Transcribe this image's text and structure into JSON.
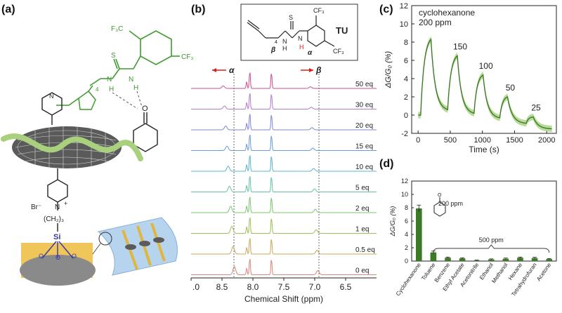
{
  "panels": {
    "a": {
      "label": "(a)"
    },
    "b": {
      "label": "(b)"
    },
    "c": {
      "label": "(c)"
    },
    "d": {
      "label": "(d)"
    }
  },
  "molecule_a": {
    "cf3_top": "F₃C",
    "cf3_right": "CF₃",
    "s": "S",
    "n_left": "N",
    "n_right": "N",
    "h_left": "H",
    "h_right": "H",
    "n4": "4",
    "o": "O",
    "br": "Br⁻",
    "n_plus": "N",
    "plus": "+",
    "chain": "(CH₂)₃",
    "si": "Si",
    "o_left": "O",
    "o_mid": "O",
    "o_right": "O",
    "pyridine_n_top": "N"
  },
  "nmr": {
    "tu_label": "TU",
    "tu_cf3_top": "CF₃",
    "tu_cf3_bot": "CF₃",
    "tu_s": "S",
    "tu_n1": "N",
    "tu_n2": "N",
    "tu_h1": "H",
    "tu_h2": "H",
    "tu_beta": "β",
    "tu_alpha": "α",
    "tu_n_sub": "4",
    "alpha_label": "α",
    "beta_label": "β",
    "xlabel": "Chemical Shift (ppm)",
    "xticks": [
      ".0",
      "8.5",
      "8.0",
      "7.5",
      "7.0",
      "6.5"
    ],
    "traces": [
      {
        "label": "50 eq",
        "color": "#c94f8e"
      },
      {
        "label": "30 eq",
        "color": "#b07ad0"
      },
      {
        "label": "20 eq",
        "color": "#7d86d6"
      },
      {
        "label": "15 eq",
        "color": "#6a9ad9"
      },
      {
        "label": "10 eq",
        "color": "#5ab4cf"
      },
      {
        "label": "5 eq",
        "color": "#63c2a4"
      },
      {
        "label": "2 eq",
        "color": "#7cc56d"
      },
      {
        "label": "1 eq",
        "color": "#9cbf55"
      },
      {
        "label": "0.5 eq",
        "color": "#c7a85a"
      },
      {
        "label": "0 eq",
        "color": "#d98579"
      }
    ]
  },
  "chart_data": [
    {
      "type": "line",
      "annotation_title": "cyclohexanone",
      "xlabel": "Time (s)",
      "ylabel": "ΔG/G₀ (%)",
      "xlim": [
        -100,
        2150
      ],
      "ylim": [
        -2,
        12
      ],
      "xticks": [
        0,
        500,
        1000,
        1500,
        2000
      ],
      "yticks": [
        -2,
        0,
        2,
        4,
        6,
        8,
        10,
        12
      ],
      "line_color": "#3d7a28",
      "band_color": "#a7d17e",
      "pulses": [
        {
          "start": 40,
          "peak_t": 200,
          "peak": 8.3,
          "end": 460,
          "end_val": 0.6,
          "label": "200 ppm"
        },
        {
          "start": 460,
          "peak_t": 610,
          "peak": 6.5,
          "end": 870,
          "end_val": 0.2,
          "label": "150"
        },
        {
          "start": 870,
          "peak_t": 1010,
          "peak": 4.4,
          "end": 1270,
          "end_val": -0.3,
          "label": "100"
        },
        {
          "start": 1270,
          "peak_t": 1390,
          "peak": 2.0,
          "end": 1680,
          "end_val": -0.9,
          "label": "50"
        },
        {
          "start": 1680,
          "peak_t": 1790,
          "peak": -0.2,
          "end": 2080,
          "end_val": -1.5,
          "label": "25"
        }
      ]
    },
    {
      "type": "bar",
      "ylabel": "ΔG/G₀ (%)",
      "ylim": [
        0,
        12
      ],
      "yticks": [
        0,
        2,
        4,
        6,
        8,
        10,
        12
      ],
      "bar_color": "#3d7a28",
      "categories": [
        "Cyclohexanone",
        "Toluene",
        "Benzene",
        "Ethyl Acetate",
        "Acetonitrile",
        "Ethanol",
        "Methanol",
        "Hexane",
        "Tetrahydrofuran",
        "Acetone"
      ],
      "values": [
        7.9,
        1.3,
        0.5,
        0.4,
        0.1,
        0.25,
        0.35,
        0.5,
        0.45,
        0.3
      ],
      "errors": [
        0.5,
        0.2,
        0.1,
        0.1,
        0.05,
        0.08,
        0.1,
        0.1,
        0.12,
        0.08
      ],
      "annotation_200": "200 ppm",
      "annotation_500": "500 ppm"
    }
  ]
}
